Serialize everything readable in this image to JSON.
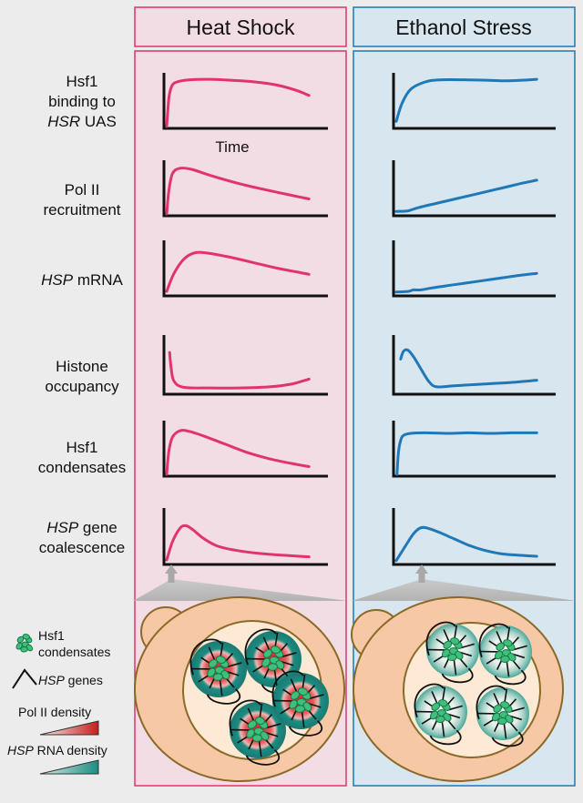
{
  "columns": {
    "heat": {
      "title": "Heat Shock",
      "accent": "#e0336f",
      "fill": "#f3dde4"
    },
    "ethanol": {
      "title": "Ethanol Stress",
      "accent": "#1f78b8",
      "fill": "#d8e6ef"
    }
  },
  "rows": [
    {
      "key": "hsf1_binding",
      "label_lines": [
        [
          "Hsf1"
        ],
        [
          "binding to"
        ],
        [
          "HSR|i",
          " UAS"
        ]
      ]
    },
    {
      "key": "pol2",
      "label_lines": [
        [
          "Pol II"
        ],
        [
          "recruitment"
        ]
      ]
    },
    {
      "key": "hsp_mrna",
      "label_lines": [
        [
          "HSP|i",
          " mRNA"
        ]
      ]
    },
    {
      "key": "histone",
      "label_lines": [
        [
          "Histone"
        ],
        [
          "occupancy"
        ]
      ]
    },
    {
      "key": "hsf1_cond",
      "label_lines": [
        [
          "Hsf1"
        ],
        [
          "condensates"
        ]
      ]
    },
    {
      "key": "coalescence",
      "label_lines": [
        [
          "HSP|i",
          " gene"
        ],
        [
          "coalescence"
        ]
      ]
    }
  ],
  "time_label": "Time",
  "legend": {
    "condensates": "Hsf1\ncondensates",
    "genes_italic": "HSP",
    "genes_rest": " genes",
    "pol2": "Pol II density",
    "rna_italic": "HSP",
    "rna_rest": " RNA density",
    "pol2_colors": [
      "#f7ecea",
      "#c41e1e"
    ],
    "rna_colors": [
      "#d9ede8",
      "#1b8c82"
    ]
  },
  "colors": {
    "cell_fill": "#f7c8a6",
    "cell_stroke": "#8a6a28",
    "nucleus_fill": "#fde9d4",
    "hsf1_green": "#3fbf7a",
    "background": "#ececec"
  },
  "curves": {
    "heat": {
      "hsf1_binding": [
        [
          0,
          0
        ],
        [
          0.015,
          0.55
        ],
        [
          0.035,
          0.78
        ],
        [
          0.07,
          0.86
        ],
        [
          0.15,
          0.9
        ],
        [
          0.3,
          0.91
        ],
        [
          0.45,
          0.89
        ],
        [
          0.6,
          0.86
        ],
        [
          0.75,
          0.8
        ],
        [
          0.88,
          0.7
        ],
        [
          0.97,
          0.6
        ]
      ],
      "pol2": [
        [
          0,
          0
        ],
        [
          0.015,
          0.45
        ],
        [
          0.04,
          0.78
        ],
        [
          0.09,
          0.88
        ],
        [
          0.17,
          0.86
        ],
        [
          0.3,
          0.74
        ],
        [
          0.5,
          0.58
        ],
        [
          0.7,
          0.45
        ],
        [
          0.85,
          0.36
        ],
        [
          0.97,
          0.29
        ]
      ],
      "hsp_mrna": [
        [
          0,
          0.05
        ],
        [
          0.05,
          0.4
        ],
        [
          0.12,
          0.68
        ],
        [
          0.2,
          0.8
        ],
        [
          0.3,
          0.78
        ],
        [
          0.45,
          0.7
        ],
        [
          0.6,
          0.6
        ],
        [
          0.75,
          0.5
        ],
        [
          0.88,
          0.43
        ],
        [
          0.97,
          0.38
        ]
      ],
      "histone": [
        [
          0.02,
          0.72
        ],
        [
          0.03,
          0.45
        ],
        [
          0.05,
          0.2
        ],
        [
          0.12,
          0.09
        ],
        [
          0.3,
          0.08
        ],
        [
          0.5,
          0.08
        ],
        [
          0.7,
          0.1
        ],
        [
          0.85,
          0.15
        ],
        [
          0.97,
          0.24
        ]
      ],
      "hsf1_cond": [
        [
          0,
          0
        ],
        [
          0.015,
          0.45
        ],
        [
          0.04,
          0.72
        ],
        [
          0.09,
          0.84
        ],
        [
          0.15,
          0.83
        ],
        [
          0.25,
          0.74
        ],
        [
          0.4,
          0.58
        ],
        [
          0.55,
          0.42
        ],
        [
          0.7,
          0.3
        ],
        [
          0.85,
          0.21
        ],
        [
          0.97,
          0.15
        ]
      ],
      "coalescence": [
        [
          0,
          0.05
        ],
        [
          0.04,
          0.4
        ],
        [
          0.09,
          0.65
        ],
        [
          0.13,
          0.7
        ],
        [
          0.18,
          0.62
        ],
        [
          0.25,
          0.46
        ],
        [
          0.35,
          0.31
        ],
        [
          0.5,
          0.22
        ],
        [
          0.65,
          0.17
        ],
        [
          0.8,
          0.14
        ],
        [
          0.97,
          0.11
        ]
      ]
    },
    "ethanol": {
      "hsf1_binding": [
        [
          0,
          0.1
        ],
        [
          0.04,
          0.45
        ],
        [
          0.1,
          0.72
        ],
        [
          0.2,
          0.86
        ],
        [
          0.3,
          0.9
        ],
        [
          0.5,
          0.9
        ],
        [
          0.65,
          0.89
        ],
        [
          0.75,
          0.88
        ],
        [
          0.85,
          0.89
        ],
        [
          0.97,
          0.91
        ]
      ],
      "pol2": [
        [
          0,
          0.05
        ],
        [
          0.08,
          0.06
        ],
        [
          0.15,
          0.12
        ],
        [
          0.3,
          0.22
        ],
        [
          0.5,
          0.35
        ],
        [
          0.7,
          0.48
        ],
        [
          0.85,
          0.58
        ],
        [
          0.97,
          0.65
        ]
      ],
      "hsp_mrna": [
        [
          0,
          0.04
        ],
        [
          0.08,
          0.05
        ],
        [
          0.12,
          0.08
        ],
        [
          0.17,
          0.08
        ],
        [
          0.25,
          0.12
        ],
        [
          0.4,
          0.18
        ],
        [
          0.55,
          0.24
        ],
        [
          0.7,
          0.3
        ],
        [
          0.85,
          0.36
        ],
        [
          0.97,
          0.4
        ]
      ],
      "histone": [
        [
          0.03,
          0.6
        ],
        [
          0.05,
          0.74
        ],
        [
          0.08,
          0.76
        ],
        [
          0.12,
          0.64
        ],
        [
          0.18,
          0.38
        ],
        [
          0.23,
          0.18
        ],
        [
          0.28,
          0.1
        ],
        [
          0.4,
          0.12
        ],
        [
          0.6,
          0.15
        ],
        [
          0.8,
          0.18
        ],
        [
          0.97,
          0.22
        ]
      ],
      "hsf1_cond": [
        [
          0.005,
          0
        ],
        [
          0.015,
          0.42
        ],
        [
          0.03,
          0.65
        ],
        [
          0.05,
          0.75
        ],
        [
          0.1,
          0.79
        ],
        [
          0.2,
          0.8
        ],
        [
          0.35,
          0.79
        ],
        [
          0.5,
          0.8
        ],
        [
          0.65,
          0.79
        ],
        [
          0.8,
          0.8
        ],
        [
          0.97,
          0.8
        ]
      ],
      "coalescence": [
        [
          0,
          0.04
        ],
        [
          0.06,
          0.3
        ],
        [
          0.12,
          0.55
        ],
        [
          0.17,
          0.66
        ],
        [
          0.22,
          0.65
        ],
        [
          0.3,
          0.57
        ],
        [
          0.4,
          0.45
        ],
        [
          0.5,
          0.33
        ],
        [
          0.6,
          0.24
        ],
        [
          0.72,
          0.17
        ],
        [
          0.85,
          0.14
        ],
        [
          0.97,
          0.12
        ]
      ]
    }
  }
}
